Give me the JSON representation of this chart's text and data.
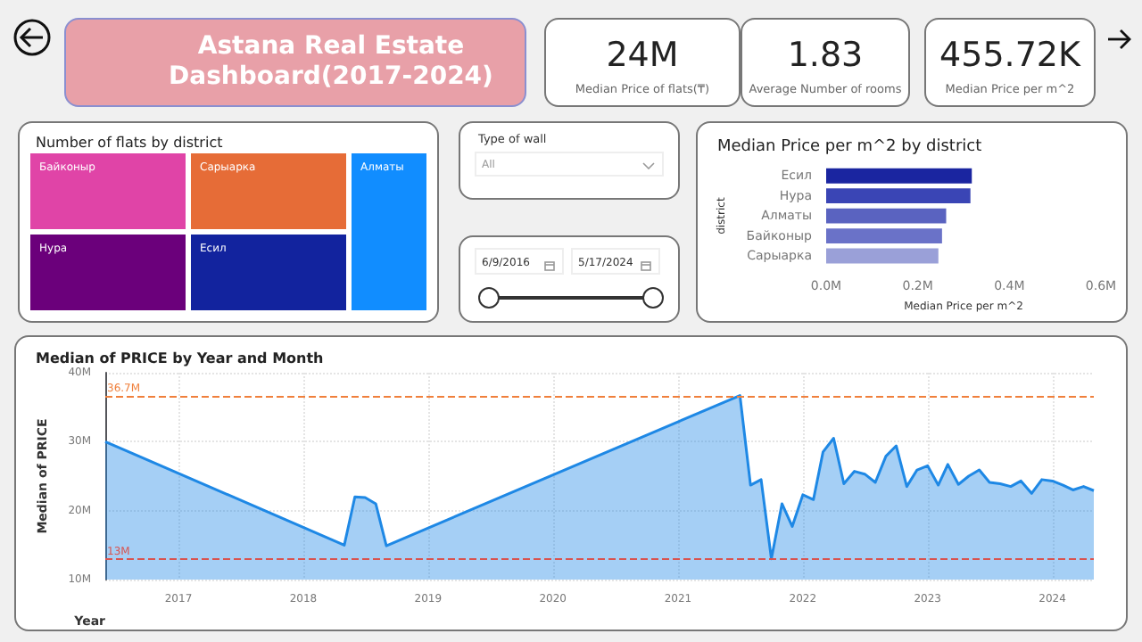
{
  "chart_data": [
    {
      "type": "other",
      "title": "Astana Real Estate Dashboard(2017-2024)"
    },
    {
      "type": "other",
      "title": "24M",
      "subtitle": "Median Price of flats(₸)"
    },
    {
      "type": "other",
      "title": "1.83",
      "subtitle": "Average Number of rooms"
    },
    {
      "type": "other",
      "title": "455.72K",
      "subtitle": "Median Price per m^2"
    },
    {
      "type": "other",
      "title": "Number of flats by district",
      "categories": [
        "Алматы",
        "Есил",
        "Сарыарка",
        "Нура",
        "Байконыр"
      ],
      "colors": [
        "#118dff",
        "#12239e",
        "#e66c37",
        "#6b007b",
        "#e044a7"
      ]
    },
    {
      "type": "other",
      "title": "Type of wall",
      "annotations": [
        "All"
      ]
    },
    {
      "type": "other",
      "annotations": [
        "6/9/2016",
        "5/17/2024"
      ]
    },
    {
      "type": "bar",
      "title": "Median Price per m^2 by district",
      "orientation": "horizontal",
      "xlabel": "Median Price per m^2",
      "ylabel": "district",
      "categories": [
        "Есил",
        "Нура",
        "Алматы",
        "Байконыр",
        "Сарыарка"
      ],
      "values": [
        0.318,
        0.315,
        0.262,
        0.253,
        0.245
      ],
      "colors": [
        "#1a25a0",
        "#3a45b5",
        "#5a63c0",
        "#6a72c8",
        "#9aa0d8"
      ],
      "xlim": [
        0,
        0.6
      ],
      "xticks": [
        {
          "value": 0,
          "label": "0.0M"
        },
        {
          "value": 0.2,
          "label": "0.2M"
        },
        {
          "value": 0.4,
          "label": "0.4M"
        },
        {
          "value": 0.6,
          "label": "0.6M"
        }
      ]
    },
    {
      "type": "area",
      "title": "Median of PRICE by Year and Month",
      "xlabel": "Year",
      "ylabel": "Median of PRICE",
      "color": "#1e88e5",
      "marker": "none",
      "grid": true,
      "x": [
        "2016-06",
        "2018-05",
        "2018-06",
        "2018-07",
        "2018-08",
        "2018-09",
        "2021-07",
        "2021-08",
        "2021-09",
        "2021-10",
        "2021-11",
        "2021-12",
        "2022-01",
        "2022-02",
        "2022-03",
        "2022-04",
        "2022-05",
        "2022-06",
        "2022-07",
        "2022-08",
        "2022-09",
        "2022-10",
        "2022-11",
        "2022-12",
        "2023-01",
        "2023-02",
        "2023-03",
        "2023-04",
        "2023-05",
        "2023-06",
        "2023-07",
        "2023-08",
        "2023-09",
        "2023-10",
        "2023-11",
        "2023-12",
        "2024-01",
        "2024-02",
        "2024-03",
        "2024-04",
        "2024-05"
      ],
      "values": [
        30,
        15,
        22,
        21.9,
        21,
        14.9,
        36.7,
        23.7,
        24.5,
        13,
        21,
        17.7,
        22.3,
        21.6,
        28.5,
        30.5,
        23.9,
        25.7,
        25.3,
        24.1,
        27.9,
        29.4,
        23.5,
        25.9,
        26.5,
        23.7,
        26.7,
        23.8,
        25,
        25.9,
        24.1,
        23.9,
        23.5,
        24.3,
        22.5,
        24.5,
        24.3,
        23.7,
        23,
        23.5,
        22.9
      ],
      "xlim": [
        "2016-06",
        "2024-05"
      ],
      "xticks": [
        "2017",
        "2018",
        "2019",
        "2020",
        "2021",
        "2022",
        "2023",
        "2024"
      ],
      "ylim": [
        10,
        40
      ],
      "yticks": [
        {
          "value": 10,
          "label": "10M"
        },
        {
          "value": 20,
          "label": "20M"
        },
        {
          "value": 30,
          "label": "30M"
        },
        {
          "value": 40,
          "label": "40M"
        }
      ],
      "ref_lines": [
        {
          "axis": "y",
          "value": 36.7,
          "label": "36.7M",
          "color": "#f0803c",
          "line_style": "dashed"
        },
        {
          "axis": "y",
          "value": 13,
          "label": "13M",
          "color": "#d9534f",
          "line_style": "dashed"
        }
      ]
    }
  ]
}
